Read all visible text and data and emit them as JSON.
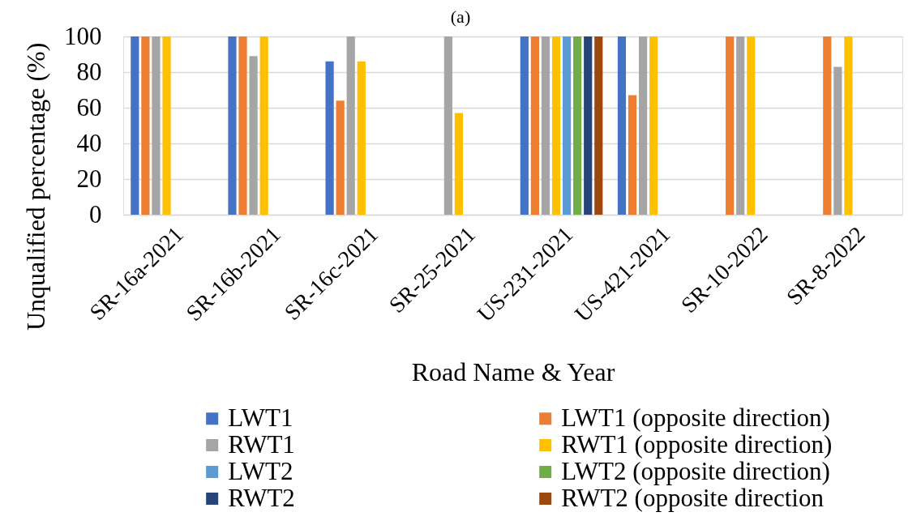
{
  "chart_data": {
    "type": "bar",
    "title": "(a)",
    "xlabel": "Road Name & Year",
    "ylabel": "Unqualified percentage (%)",
    "categories": [
      "SR-16a-2021",
      "SR-16b-2021",
      "SR-16c-2021",
      "SR-25-2021",
      "US-231-2021",
      "US-421-2021",
      "SR-10-2022",
      "SR-8-2022"
    ],
    "series": [
      {
        "name": "LWT1",
        "color": "#4472c4",
        "values": [
          100,
          100,
          86,
          null,
          100,
          100,
          null,
          null
        ]
      },
      {
        "name": "LWT1 (opposite direction)",
        "color": "#ed7d31",
        "values": [
          100,
          100,
          64,
          null,
          100,
          67,
          100,
          100
        ]
      },
      {
        "name": "RWT1",
        "color": "#a5a5a5",
        "values": [
          100,
          89,
          100,
          100,
          100,
          100,
          100,
          83
        ]
      },
      {
        "name": "RWT1 (opposite direction)",
        "color": "#ffc000",
        "values": [
          100,
          100,
          86,
          57,
          100,
          100,
          100,
          100
        ]
      },
      {
        "name": "LWT2",
        "color": "#5b9bd5",
        "values": [
          null,
          null,
          null,
          null,
          100,
          null,
          null,
          null
        ]
      },
      {
        "name": "LWT2 (opposite direction)",
        "color": "#70ad47",
        "values": [
          null,
          null,
          null,
          null,
          100,
          null,
          null,
          null
        ]
      },
      {
        "name": "RWT2",
        "color": "#264478",
        "values": [
          null,
          null,
          null,
          null,
          100,
          null,
          null,
          null
        ]
      },
      {
        "name": "RWT2 (opposite direction",
        "color": "#9e480e",
        "values": [
          null,
          null,
          null,
          null,
          100,
          null,
          null,
          null
        ]
      }
    ],
    "ylim": [
      0,
      100
    ],
    "yticks": [
      0,
      20,
      40,
      60,
      80,
      100
    ],
    "grid": "y",
    "legend": "bottom"
  }
}
